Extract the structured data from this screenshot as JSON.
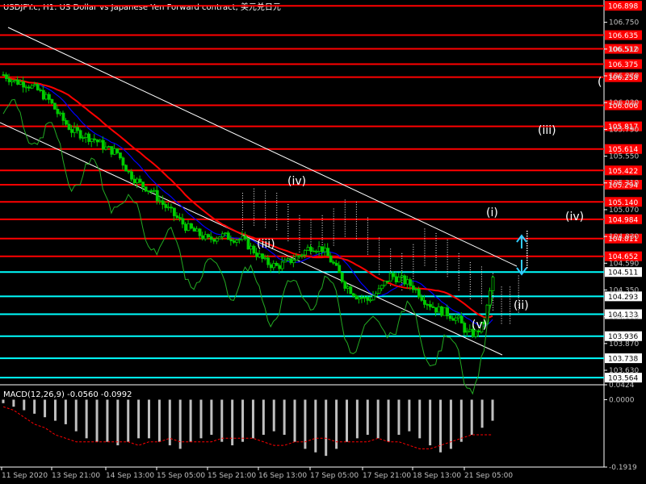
{
  "header": {
    "symbol_title": "USDJPY.c, H1:  US Dollar vs Japanese Yen Forward contract, 美元兑日元"
  },
  "colors": {
    "background": "#000000",
    "candle": "#00cc00",
    "grid_text": "#c0c0c0",
    "resistance": "#ff0000",
    "support": "#00ffff",
    "ma_fast": "#0000ff",
    "ma_slow": "#ff0000",
    "channel": "#ffffff",
    "macd_hist": "#c0c0c0",
    "macd_signal": "#ff0000"
  },
  "chart_data": [
    {
      "type": "candlestick",
      "title": "USDJPY.c, H1:  US Dollar vs Japanese Yen Forward contract, 美元兑日元",
      "x_ticks": [
        "11 Sep 2020",
        "13 Sep 21:00",
        "14 Sep 13:00",
        "15 Sep 05:00",
        "15 Sep 21:00",
        "16 Sep 13:00",
        "17 Sep 05:00",
        "17 Sep 21:00",
        "18 Sep 13:00",
        "21 Sep 05:00"
      ],
      "y_ticks": [
        "106.750",
        "106.510",
        "106.270",
        "106.030",
        "105.790",
        "105.550",
        "105.310",
        "105.070",
        "104.830",
        "104.590",
        "104.350",
        "104.110",
        "103.870",
        "103.630"
      ],
      "ylim": [
        103.5,
        106.95
      ],
      "price_path": [
        [
          0,
          106.28
        ],
        [
          8,
          106.22
        ],
        [
          16,
          106.2
        ],
        [
          24,
          106.14
        ],
        [
          32,
          106.05
        ],
        [
          40,
          105.9
        ],
        [
          48,
          105.78
        ],
        [
          56,
          105.74
        ],
        [
          64,
          105.7
        ],
        [
          72,
          105.62
        ],
        [
          80,
          105.58
        ],
        [
          88,
          105.4
        ],
        [
          96,
          105.3
        ],
        [
          104,
          105.24
        ],
        [
          112,
          105.12
        ],
        [
          120,
          105.02
        ],
        [
          128,
          104.92
        ],
        [
          136,
          104.86
        ],
        [
          144,
          104.8
        ],
        [
          152,
          104.84
        ],
        [
          160,
          104.82
        ],
        [
          168,
          104.8
        ],
        [
          176,
          104.7
        ],
        [
          184,
          104.6
        ],
        [
          192,
          104.56
        ],
        [
          200,
          104.6
        ],
        [
          208,
          104.66
        ],
        [
          216,
          104.74
        ],
        [
          224,
          104.72
        ],
        [
          232,
          104.58
        ],
        [
          240,
          104.4
        ],
        [
          248,
          104.3
        ],
        [
          256,
          104.26
        ],
        [
          264,
          104.34
        ],
        [
          272,
          104.48
        ],
        [
          280,
          104.44
        ],
        [
          288,
          104.38
        ],
        [
          296,
          104.26
        ],
        [
          304,
          104.18
        ],
        [
          312,
          104.14
        ],
        [
          320,
          104.08
        ],
        [
          326,
          103.96
        ],
        [
          332,
          103.96
        ],
        [
          338,
          104.06
        ],
        [
          344,
          104.46
        ]
      ],
      "resistance_levels": [
        106.898,
        106.635,
        106.512,
        106.375,
        106.258,
        106.006,
        105.817,
        105.614,
        105.422,
        105.294,
        105.14,
        104.984,
        104.811,
        104.652
      ],
      "support_levels": [
        104.511,
        104.293,
        104.133,
        103.936,
        103.738,
        103.564
      ],
      "wave_labels": [
        "(iii)",
        "(iv)",
        "(v)",
        "(i)",
        "(ii)",
        "(iii)",
        "(iv)",
        "("
      ],
      "annotations": [
        "ma_fast",
        "ma_slow",
        "ichimoku_cloud",
        "descending_channel"
      ]
    },
    {
      "type": "bar",
      "title": "MACD(12,26,9) -0.0560 -0.0992",
      "y_ticks": [
        "0.0424",
        "0.0000",
        "-0.1919"
      ],
      "ylim": [
        -0.1919,
        0.0424
      ],
      "histogram": [
        -0.01,
        -0.02,
        -0.03,
        -0.04,
        -0.05,
        -0.06,
        -0.07,
        -0.09,
        -0.11,
        -0.12,
        -0.12,
        -0.13,
        -0.12,
        -0.11,
        -0.11,
        -0.12,
        -0.13,
        -0.14,
        -0.12,
        -0.11,
        -0.1,
        -0.12,
        -0.13,
        -0.12,
        -0.11,
        -0.1,
        -0.09,
        -0.1,
        -0.12,
        -0.14,
        -0.15,
        -0.16,
        -0.14,
        -0.12,
        -0.11,
        -0.1,
        -0.11,
        -0.12,
        -0.1,
        -0.09,
        -0.11,
        -0.13,
        -0.15,
        -0.14,
        -0.12,
        -0.1,
        -0.08,
        -0.06
      ],
      "signal": [
        -0.02,
        -0.03,
        -0.05,
        -0.07,
        -0.08,
        -0.1,
        -0.11,
        -0.12,
        -0.12,
        -0.12,
        -0.12,
        -0.12,
        -0.12,
        -0.13,
        -0.12,
        -0.12,
        -0.11,
        -0.12,
        -0.12,
        -0.12,
        -0.12,
        -0.11,
        -0.11,
        -0.11,
        -0.11,
        -0.12,
        -0.13,
        -0.13,
        -0.12,
        -0.12,
        -0.11,
        -0.11,
        -0.12,
        -0.12,
        -0.12,
        -0.12,
        -0.11,
        -0.12,
        -0.12,
        -0.13,
        -0.14,
        -0.14,
        -0.13,
        -0.12,
        -0.11,
        -0.1,
        -0.1,
        -0.1
      ]
    }
  ]
}
